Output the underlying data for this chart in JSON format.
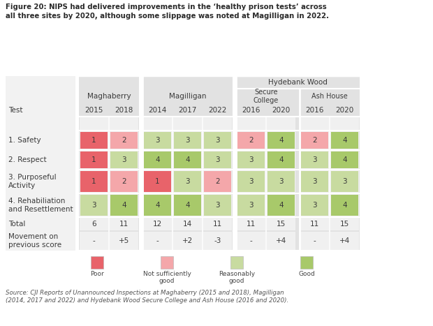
{
  "title_bold": "Figure 20: NIPS had delivered improvements in the ‘healthy prison tests’ across\nall three sites by 2020, although some slippage was noted at Magilligan in 2022.",
  "source_text": "Source: CJI Reports of Unannounced Inspections at Maghaberry (2015 and 2018), Magilligan\n(2014, 2017 and 2022) and Hydebank Wood Secure College and Ash House (2016 and 2020).",
  "color_map": {
    "1": "#e8636a",
    "2": "#f4a7aa",
    "3": "#c8dba0",
    "4": "#a8c96a"
  },
  "legend": [
    {
      "label": "Poor",
      "color": "#e8636a"
    },
    {
      "label": "Not sufficiently\ngood",
      "color": "#f4a7aa"
    },
    {
      "label": "Reasonably\ngood",
      "color": "#c8dba0"
    },
    {
      "label": "Good",
      "color": "#a8c96a"
    }
  ],
  "cell_values": [
    [
      1,
      2,
      3,
      3,
      3,
      2,
      4,
      2,
      4
    ],
    [
      1,
      3,
      4,
      4,
      3,
      3,
      4,
      3,
      4
    ],
    [
      1,
      2,
      1,
      3,
      2,
      3,
      3,
      3,
      3
    ],
    [
      3,
      4,
      4,
      4,
      3,
      3,
      4,
      3,
      4
    ],
    [
      6,
      11,
      12,
      14,
      11,
      11,
      15,
      11,
      15
    ],
    [
      "-",
      "+5",
      "-",
      "+2",
      "-3",
      "-",
      "+4",
      "-",
      "+4"
    ]
  ],
  "row_labels": [
    "Test",
    "1. Safety",
    "2. Respect",
    "3. Purposeful\nActivity",
    "4. Rehabiliation\nand Resettlement",
    "Total",
    "Movement on\nprevious score"
  ],
  "year_labels": [
    "2015",
    "2018",
    "2014",
    "2017",
    "2022",
    "2016",
    "2020",
    "2016",
    "2020"
  ],
  "group_labels": [
    "Maghaberry",
    "Magilligan",
    "Hydebank Wood"
  ],
  "sub_labels": [
    "Secure\nCollege",
    "Ash House"
  ],
  "table_bg": "#e8e8e8",
  "row_label_bg": "#ffffff",
  "cell_bg": "#f0f0f0",
  "header_bg": "#d8d8d8",
  "title_color": "#2a2a2a",
  "text_color": "#3a3a3a",
  "source_color": "#555555"
}
